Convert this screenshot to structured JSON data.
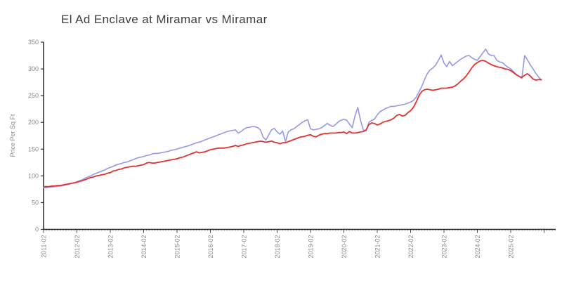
{
  "chart_data": {
    "type": "line",
    "title": "El Ad Enclave at Miramar vs Miramar",
    "xlabel": "",
    "ylabel": "Price Per Sq Ft",
    "ylim": [
      0,
      350
    ],
    "y_ticks": [
      0,
      50,
      100,
      150,
      200,
      250,
      300,
      350
    ],
    "x_tick_labels": [
      "2011-02",
      "2012-02",
      "2013-02",
      "2014-02",
      "2015-02",
      "2016-02",
      "2017-02",
      "2018-02",
      "2019-02",
      "2020-02",
      "2021-02",
      "2022-02",
      "2023-02",
      "2024-02",
      "2025-02"
    ],
    "x_start": "2011-02",
    "x_step_months": 1,
    "x_end": "2026-01",
    "grid": false,
    "legend": "none",
    "axis_color": "#1a1a1a",
    "tick_label_color": "#8a8a8a",
    "series": [
      {
        "name": "blue",
        "color": "#9797e8",
        "values": [
          78,
          78,
          79,
          79,
          80,
          80,
          81,
          82,
          83,
          84,
          86,
          87,
          89,
          91,
          93,
          96,
          98,
          100,
          103,
          105,
          107,
          109,
          111,
          114,
          116,
          118,
          120,
          122,
          123,
          125,
          126,
          128,
          130,
          132,
          134,
          135,
          136,
          138,
          139,
          141,
          142,
          142,
          143,
          144,
          145,
          146,
          148,
          149,
          150,
          152,
          153,
          155,
          156,
          158,
          160,
          162,
          163,
          165,
          167,
          169,
          171,
          173,
          175,
          177,
          179,
          181,
          183,
          184,
          185,
          186,
          180,
          183,
          187,
          190,
          191,
          192,
          192,
          190,
          186,
          172,
          167,
          177,
          186,
          189,
          182,
          178,
          184,
          164,
          182,
          186,
          188,
          192,
          196,
          200,
          203,
          205,
          188,
          186,
          187,
          188,
          190,
          194,
          198,
          195,
          192,
          196,
          201,
          204,
          206,
          204,
          197,
          190,
          212,
          228,
          204,
          186,
          184,
          200,
          204,
          206,
          214,
          220,
          223,
          226,
          228,
          230,
          230,
          231,
          232,
          233,
          234,
          236,
          238,
          241,
          247,
          257,
          267,
          280,
          291,
          298,
          302,
          307,
          316,
          326,
          311,
          304,
          314,
          306,
          310,
          314,
          318,
          321,
          324,
          325,
          321,
          318,
          316,
          323,
          330,
          337,
          328,
          325,
          325,
          316,
          313,
          312,
          307,
          303,
          300,
          295,
          290,
          286,
          282,
          325,
          317,
          308,
          300,
          292,
          285,
          279
        ]
      },
      {
        "name": "red",
        "color": "#e23131",
        "values": [
          80,
          80,
          80,
          81,
          81,
          82,
          82,
          83,
          84,
          85,
          86,
          87,
          88,
          90,
          91,
          93,
          95,
          97,
          98,
          100,
          101,
          102,
          103,
          105,
          106,
          109,
          110,
          112,
          113,
          115,
          116,
          117,
          118,
          118,
          119,
          120,
          121,
          124,
          125,
          124,
          124,
          125,
          126,
          127,
          128,
          129,
          130,
          131,
          132,
          134,
          135,
          137,
          139,
          141,
          143,
          145,
          143,
          144,
          145,
          147,
          149,
          150,
          151,
          152,
          152,
          152,
          153,
          154,
          155,
          157,
          155,
          157,
          158,
          160,
          161,
          162,
          163,
          164,
          165,
          164,
          163,
          164,
          165,
          163,
          162,
          160,
          162,
          162,
          164,
          166,
          168,
          170,
          172,
          173,
          174,
          176,
          177,
          174,
          173,
          176,
          178,
          179,
          179,
          180,
          180,
          180,
          181,
          181,
          182,
          179,
          183,
          180,
          180,
          181,
          182,
          183,
          186,
          196,
          199,
          198,
          195,
          197,
          200,
          202,
          203,
          205,
          208,
          213,
          215,
          212,
          213,
          218,
          222,
          228,
          238,
          250,
          258,
          261,
          262,
          261,
          260,
          261,
          262,
          264,
          264,
          264,
          265,
          266,
          268,
          272,
          277,
          281,
          287,
          294,
          302,
          308,
          312,
          315,
          316,
          314,
          311,
          308,
          306,
          304,
          303,
          302,
          300,
          299,
          297,
          293,
          289,
          286,
          284,
          288,
          291,
          287,
          281,
          279,
          280,
          280
        ]
      }
    ]
  }
}
